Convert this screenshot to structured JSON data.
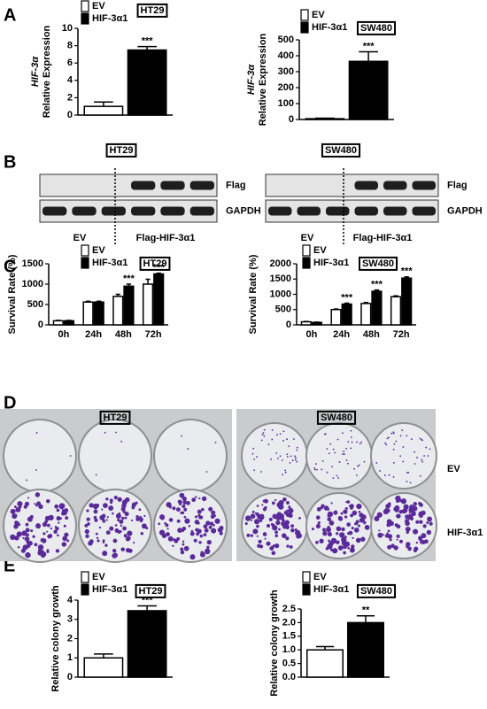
{
  "panel_labels": [
    "A",
    "B",
    "C",
    "D",
    "E"
  ],
  "blots": [
    {
      "cell_line": "HT29",
      "rows": [
        "Flag",
        "GAPDH"
      ],
      "lanes": [
        "EV",
        "Flag-HIF-3α1"
      ]
    },
    {
      "cell_line": "SW480",
      "rows": [
        "Flag",
        "GAPDH"
      ],
      "lanes": [
        "EV",
        "Flag-HIF-3α1"
      ]
    }
  ],
  "colony": {
    "cell_lines": [
      "HT29",
      "SW480"
    ],
    "rows": [
      "EV",
      "HIF-3α1"
    ]
  },
  "chart_data": [
    {
      "type": "bar",
      "title": "HT29",
      "ylabel": [
        "HIF-3α",
        "Relative Expression"
      ],
      "categories": [
        null
      ],
      "series": [
        {
          "name": "EV",
          "color": "#ffffff",
          "values": [
            1.0
          ],
          "errors": [
            0.5
          ]
        },
        {
          "name": "HIF-3α1",
          "color": "#000000",
          "values": [
            7.5
          ],
          "errors": [
            0.4
          ],
          "labels": [
            "***"
          ]
        }
      ],
      "ylim": [
        0,
        10
      ],
      "yticks": [
        0,
        2,
        4,
        6,
        8,
        10
      ]
    },
    {
      "type": "bar",
      "title": "SW480",
      "ylabel": [
        "HIF-3α",
        "Relative Expression"
      ],
      "categories": [
        null
      ],
      "series": [
        {
          "name": "EV",
          "color": "#ffffff",
          "values": [
            5
          ],
          "errors": [
            3
          ]
        },
        {
          "name": "HIF-3α1",
          "color": "#000000",
          "values": [
            365
          ],
          "errors": [
            60
          ],
          "labels": [
            "***"
          ]
        }
      ],
      "ylim": [
        0,
        500
      ],
      "yticks": [
        0,
        100,
        200,
        300,
        400,
        500
      ]
    },
    {
      "type": "bar",
      "title": "HT29",
      "ylabel": [
        "Survival Rate (%)"
      ],
      "categories": [
        "0h",
        "24h",
        "48h",
        "72h"
      ],
      "series": [
        {
          "name": "EV",
          "color": "#ffffff",
          "values": [
            100,
            560,
            700,
            1000
          ],
          "errors": [
            10,
            20,
            50,
            120
          ]
        },
        {
          "name": "HIF-3α1",
          "color": "#000000",
          "values": [
            100,
            560,
            950,
            1250
          ],
          "errors": [
            10,
            20,
            50,
            20
          ],
          "labels": [
            null,
            null,
            "***",
            "***"
          ]
        }
      ],
      "ylim": [
        0,
        1500
      ],
      "yticks": [
        0,
        500,
        1000,
        1500
      ]
    },
    {
      "type": "bar",
      "title": "SW480",
      "ylabel": [
        "Survival Rate (%)"
      ],
      "categories": [
        "0h",
        "24h",
        "48h",
        "72h"
      ],
      "series": [
        {
          "name": "EV",
          "color": "#ffffff",
          "values": [
            100,
            500,
            700,
            920
          ],
          "errors": [
            10,
            20,
            30,
            30
          ]
        },
        {
          "name": "HIF-3α1",
          "color": "#000000",
          "values": [
            80,
            680,
            1100,
            1530
          ],
          "errors": [
            10,
            30,
            40,
            40
          ],
          "labels": [
            null,
            "***",
            "***",
            "***"
          ]
        }
      ],
      "ylim": [
        0,
        2000
      ],
      "yticks": [
        0,
        500,
        1000,
        1500,
        2000
      ]
    },
    {
      "type": "bar",
      "title": "HT29",
      "ylabel": [
        "Relative colony growth"
      ],
      "categories": [
        null
      ],
      "series": [
        {
          "name": "EV",
          "color": "#ffffff",
          "values": [
            1.0
          ],
          "errors": [
            0.2
          ]
        },
        {
          "name": "HIF-3α1",
          "color": "#000000",
          "values": [
            3.45
          ],
          "errors": [
            0.25
          ],
          "labels": [
            "***"
          ]
        }
      ],
      "ylim": [
        0,
        4
      ],
      "yticks": [
        0,
        1,
        2,
        3,
        4
      ]
    },
    {
      "type": "bar",
      "title": "SW480",
      "ylabel": [
        "Relative colony growth"
      ],
      "categories": [
        null
      ],
      "series": [
        {
          "name": "EV",
          "color": "#ffffff",
          "values": [
            1.0
          ],
          "errors": [
            0.12
          ]
        },
        {
          "name": "HIF-3α1",
          "color": "#000000",
          "values": [
            2.0
          ],
          "errors": [
            0.25
          ],
          "labels": [
            "**"
          ]
        }
      ],
      "ylim": [
        0,
        2.5
      ],
      "yticks": [
        {
          "value": 0,
          "label": "0.0"
        },
        {
          "value": 0.5,
          "label": "0.5"
        },
        {
          "value": 1,
          "label": "1.0"
        },
        {
          "value": 1.5,
          "label": "1.5"
        },
        {
          "value": 2,
          "label": "2.0"
        },
        {
          "value": 2.5,
          "label": "2.5"
        }
      ]
    }
  ]
}
